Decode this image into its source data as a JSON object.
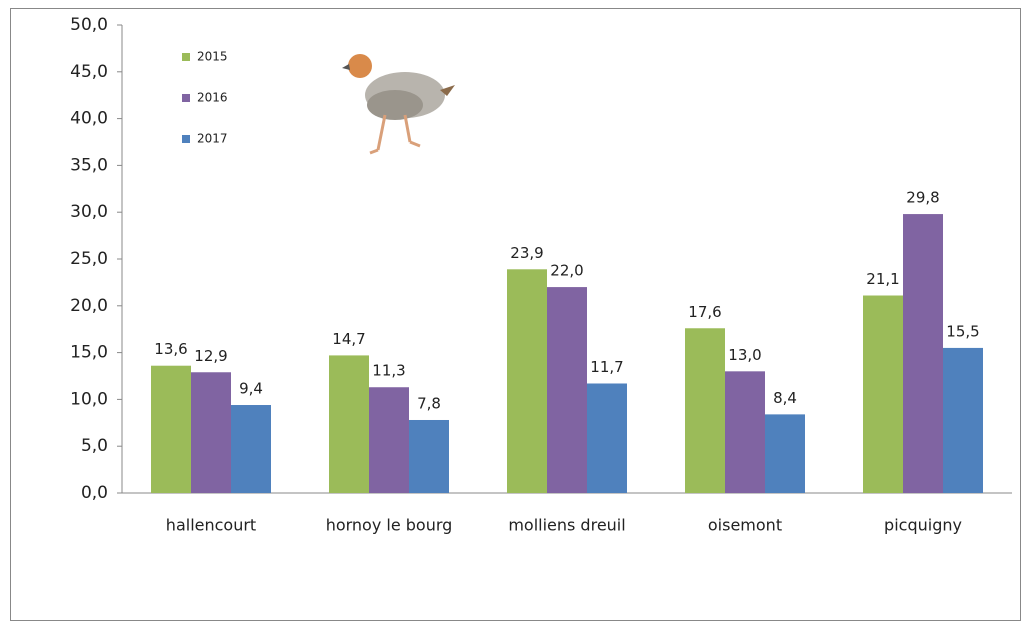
{
  "chart_data": {
    "type": "bar",
    "categories": [
      "hallencourt",
      "hornoy le bourg",
      "molliens dreuil",
      "oisemont",
      "picquigny"
    ],
    "series": [
      {
        "name": "2015",
        "color": "#9bbb59",
        "values": [
          13.6,
          14.7,
          23.9,
          17.6,
          21.1
        ],
        "value_labels": [
          "13,6",
          "14,7",
          "23,9",
          "17,6",
          "21,1"
        ]
      },
      {
        "name": "2016",
        "color": "#8064a2",
        "values": [
          12.9,
          11.3,
          22.0,
          13.0,
          29.8
        ],
        "value_labels": [
          "12,9",
          "11,3",
          "22,0",
          "13,0",
          "29,8"
        ]
      },
      {
        "name": "2017",
        "color": "#4f81bd",
        "values": [
          9.4,
          7.8,
          11.7,
          8.4,
          15.5
        ],
        "value_labels": [
          "9,4",
          "7,8",
          "11,7",
          "8,4",
          "15,5"
        ]
      }
    ],
    "ylim": [
      0,
      50
    ],
    "yticks": [
      {
        "value": 0,
        "label": "0,0"
      },
      {
        "value": 5,
        "label": "5,0"
      },
      {
        "value": 10,
        "label": "10,0"
      },
      {
        "value": 15,
        "label": "15,0"
      },
      {
        "value": 20,
        "label": "20,0"
      },
      {
        "value": 25,
        "label": "25,0"
      },
      {
        "value": 30,
        "label": "30,0"
      },
      {
        "value": 35,
        "label": "35,0"
      },
      {
        "value": 40,
        "label": "40,0"
      },
      {
        "value": 45,
        "label": "45,0"
      },
      {
        "value": 50,
        "label": "50,0"
      }
    ],
    "grid": false,
    "legend_position": "top-left"
  }
}
